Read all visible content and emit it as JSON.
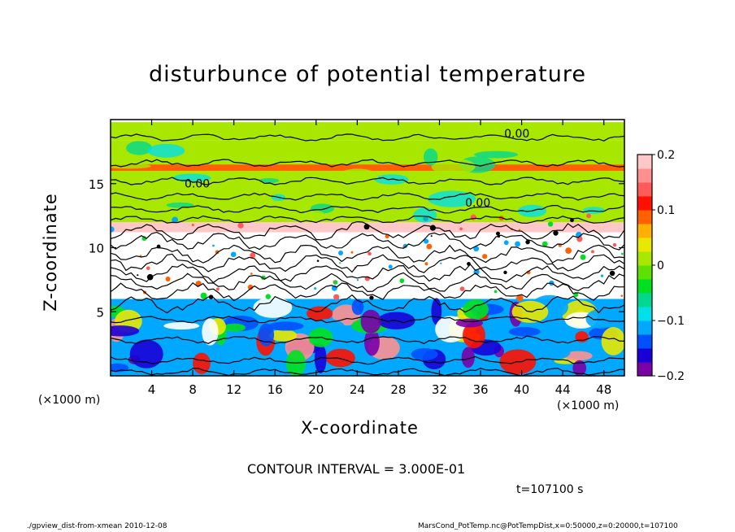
{
  "chart_data": {
    "type": "heatmap",
    "title": "disturbunce of potential temperature",
    "xlabel": "X-coordinate",
    "ylabel": "Z-coordinate",
    "x_unit_left": "(×1000 m)",
    "x_unit_right": "(×1000 m)",
    "xlim": [
      0,
      50
    ],
    "ylim": [
      0,
      20
    ],
    "x_ticks": [
      4,
      8,
      12,
      16,
      20,
      24,
      28,
      32,
      36,
      40,
      44,
      48
    ],
    "y_ticks": [
      5,
      10,
      15
    ],
    "colorbar": {
      "ticks": [
        "0.2",
        "0.1",
        "0",
        "−0.1",
        "−0.2"
      ],
      "tick_values": [
        0.2,
        0.1,
        0,
        -0.1,
        -0.2
      ],
      "range": [
        -0.2,
        0.2
      ],
      "colors": [
        "#7a00a8",
        "#1a00d8",
        "#0050ff",
        "#00a8ff",
        "#00e0e8",
        "#00d890",
        "#00e020",
        "#5ee000",
        "#a8e800",
        "#e8e800",
        "#ffb000",
        "#ff6000",
        "#ff1000",
        "#ff5a5a",
        "#ff9090",
        "#ffc8c8"
      ]
    },
    "contour_labels": [
      "0.00",
      "0.00",
      "0.00"
    ],
    "contour_interval": "CONTOUR INTERVAL = 3.000E-01",
    "time": "t=107100 s",
    "bands": [
      {
        "z": [
          18.4,
          19.8
        ],
        "value": 0.0
      },
      {
        "z": [
          16.5,
          18.4
        ],
        "value": 0.0
      },
      {
        "z": [
          16.0,
          16.5
        ],
        "value": 0.08
      },
      {
        "z": [
          12.0,
          16.0
        ],
        "value": 0.0
      },
      {
        "z": [
          11.2,
          12.0
        ],
        "value": 0.18
      },
      {
        "z": [
          6.0,
          11.2
        ],
        "value": null
      },
      {
        "z": [
          0.0,
          6.0
        ],
        "value": -0.12
      }
    ]
  },
  "footer": {
    "left": "./gpview_dist-from-xmean  2010-12-08",
    "right": "MarsCond_PotTemp.nc@PotTempDist,x=0:50000,z=0:20000,t=107100"
  }
}
